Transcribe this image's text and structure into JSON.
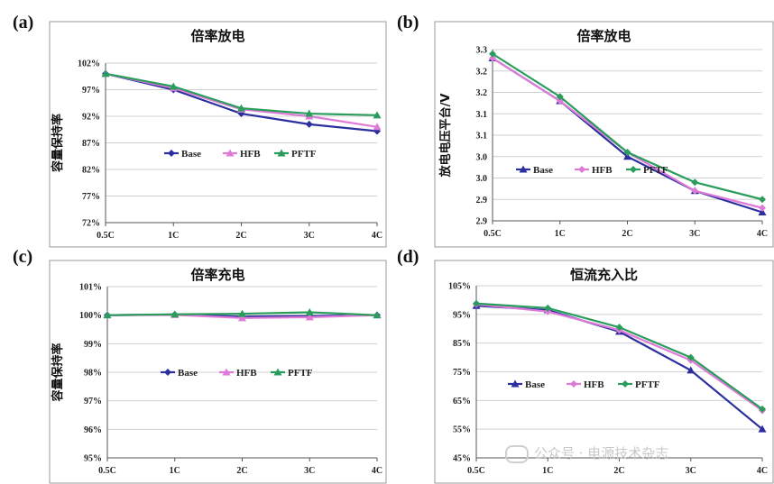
{
  "chart_data": [
    {
      "panel": "(a)",
      "type": "line",
      "title": "倍率放电",
      "xlabel": "",
      "ylabel": "容量保持率",
      "categories": [
        "0.5C",
        "1C",
        "2C",
        "3C",
        "4C"
      ],
      "yticks": [
        "72%",
        "77%",
        "82%",
        "87%",
        "92%",
        "97%",
        "102%"
      ],
      "ylim": [
        72,
        102
      ],
      "legend_position": "center",
      "series": [
        {
          "name": "Base",
          "marker": "diamond",
          "color": "#2b2f9e",
          "values": [
            100,
            97,
            92.5,
            90.5,
            89.2
          ]
        },
        {
          "name": "HFB",
          "marker": "triangle",
          "color": "#e07ad8",
          "values": [
            100,
            97.3,
            93.3,
            92,
            90
          ]
        },
        {
          "name": "PFTF",
          "marker": "triangle",
          "color": "#2a9d5c",
          "values": [
            100,
            97.6,
            93.5,
            92.5,
            92.2
          ]
        }
      ]
    },
    {
      "panel": "(b)",
      "type": "line",
      "title": "倍率放电",
      "xlabel": "",
      "ylabel": "放电电压平台/V",
      "categories": [
        "0.5C",
        "1C",
        "2C",
        "3C",
        "4C"
      ],
      "yticks": [
        "2.9",
        "2.9",
        "3.0",
        "3.0",
        "3.1",
        "3.1",
        "3.2",
        "3.2",
        "3.3"
      ],
      "ylim": [
        2.9,
        3.3
      ],
      "legend_position": "center-left",
      "series": [
        {
          "name": "Base",
          "marker": "triangle",
          "color": "#2b2f9e",
          "values": [
            3.28,
            3.18,
            3.05,
            2.97,
            2.92
          ]
        },
        {
          "name": "HFB",
          "marker": "diamond",
          "color": "#e07ad8",
          "values": [
            3.28,
            3.18,
            3.06,
            2.97,
            2.93
          ]
        },
        {
          "name": "PFTF",
          "marker": "diamond",
          "color": "#2a9d5c",
          "values": [
            3.29,
            3.19,
            3.06,
            2.99,
            2.95
          ]
        }
      ]
    },
    {
      "panel": "(c)",
      "type": "line",
      "title": "倍率充电",
      "xlabel": "",
      "ylabel": "容量保持率",
      "categories": [
        "0.5C",
        "1C",
        "2C",
        "3C",
        "4C"
      ],
      "yticks": [
        "95%",
        "96%",
        "97%",
        "98%",
        "99%",
        "100%",
        "101%"
      ],
      "ylim": [
        95,
        101
      ],
      "legend_position": "center",
      "series": [
        {
          "name": "Base",
          "marker": "diamond",
          "color": "#2b2f9e",
          "values": [
            100,
            100.02,
            99.95,
            99.97,
            100
          ]
        },
        {
          "name": "HFB",
          "marker": "triangle",
          "color": "#e07ad8",
          "values": [
            100,
            100.01,
            99.9,
            99.93,
            100
          ]
        },
        {
          "name": "PFTF",
          "marker": "triangle",
          "color": "#2a9d5c",
          "values": [
            100,
            100.03,
            100.05,
            100.1,
            100
          ]
        }
      ]
    },
    {
      "panel": "(d)",
      "type": "line",
      "title": "恒流充入比",
      "xlabel": "",
      "ylabel": "",
      "categories": [
        "0.5C",
        "1C",
        "2C",
        "3C",
        "4C"
      ],
      "yticks": [
        "45%",
        "55%",
        "65%",
        "75%",
        "85%",
        "95%",
        "105%"
      ],
      "ylim": [
        45,
        105
      ],
      "legend_position": "center-left",
      "series": [
        {
          "name": "Base",
          "marker": "triangle",
          "color": "#2b2f9e",
          "values": [
            98,
            96.5,
            89,
            75.5,
            55
          ]
        },
        {
          "name": "HFB",
          "marker": "diamond",
          "color": "#e07ad8",
          "values": [
            98.5,
            96,
            89.5,
            79,
            61.5
          ]
        },
        {
          "name": "PFTF",
          "marker": "diamond",
          "color": "#2a9d5c",
          "values": [
            98.8,
            97.2,
            90.5,
            80,
            62
          ]
        }
      ]
    }
  ],
  "watermark": "公众号 · 电源技术杂志"
}
